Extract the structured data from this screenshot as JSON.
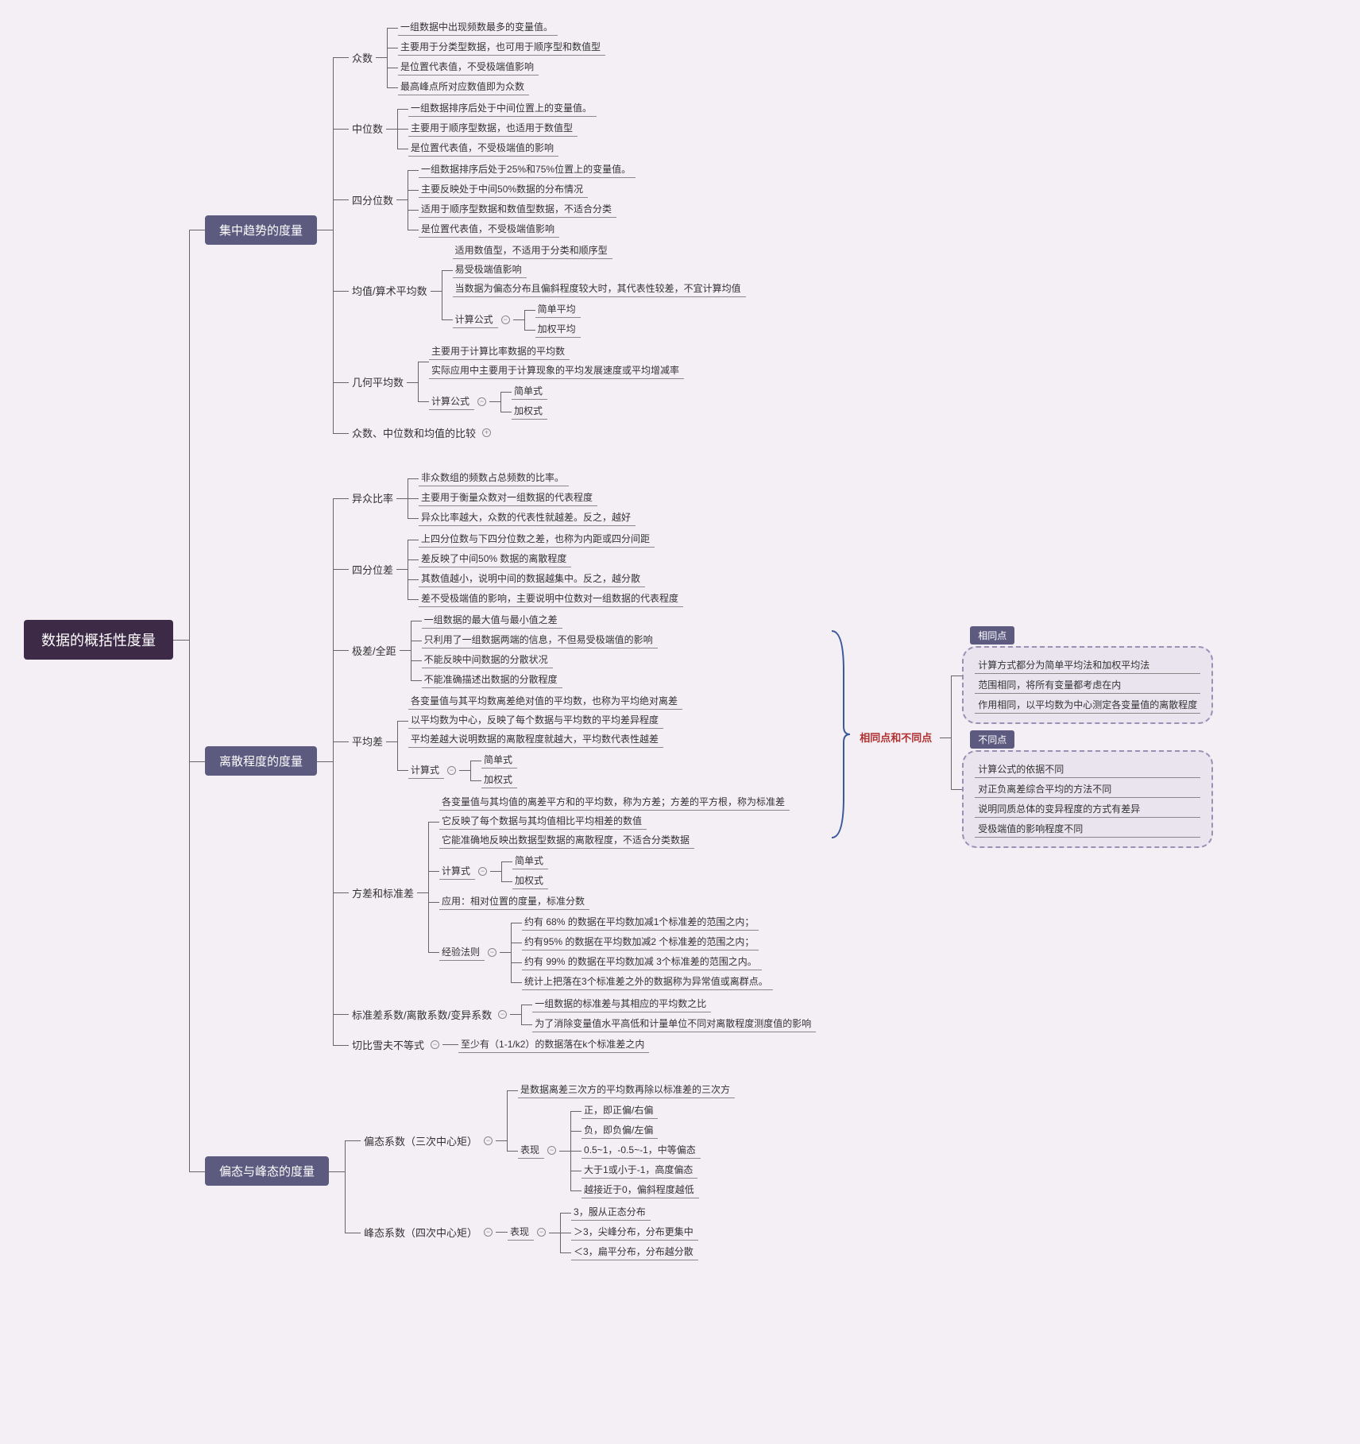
{
  "root": "数据的概括性度量",
  "level1": {
    "central": "集中趋势的度量",
    "dispersion": "离散程度的度量",
    "shape": "偏态与峰态的度量"
  },
  "central": {
    "mode": {
      "label": "众数",
      "items": [
        "一组数据中出现频数最多的变量值。",
        "主要用于分类型数据，也可用于顺序型和数值型",
        "是位置代表值，不受极端值影响",
        "最高峰点所对应数值即为众数"
      ]
    },
    "median": {
      "label": "中位数",
      "items": [
        "一组数据排序后处于中间位置上的变量值。",
        "主要用于顺序型数据，也适用于数值型",
        "是位置代表值，不受极端值的影响"
      ]
    },
    "quartile": {
      "label": "四分位数",
      "items": [
        "一组数据排序后处于25%和75%位置上的变量值。",
        "主要反映处于中间50%数据的分布情况",
        "适用于顺序型数据和数值型数据，不适合分类",
        "是位置代表值，不受极端值影响"
      ]
    },
    "mean": {
      "label": "均值/算术平均数",
      "items": [
        "适用数值型，不适用于分类和顺序型",
        "易受极端值影响",
        "当数据为偏态分布且偏斜程度较大时，其代表性较差，不宜计算均值"
      ],
      "formula_label": "计算公式",
      "formula_items": [
        "简单平均",
        "加权平均"
      ]
    },
    "geomean": {
      "label": "几何平均数",
      "items": [
        "主要用于计算比率数据的平均数",
        "实际应用中主要用于计算现象的平均发展速度或平均增减率"
      ],
      "formula_label": "计算公式",
      "formula_items": [
        "简单式",
        "加权式"
      ]
    },
    "compare": "众数、中位数和均值的比较"
  },
  "dispersion": {
    "vr": {
      "label": "异众比率",
      "items": [
        "非众数组的频数占总频数的比率。",
        "主要用于衡量众数对一组数据的代表程度",
        "异众比率越大，众数的代表性就越差。反之，越好"
      ]
    },
    "iqr": {
      "label": "四分位差",
      "items": [
        "上四分位数与下四分位数之差，也称为内距或四分间距",
        "差反映了中间50% 数据的离散程度",
        "其数值越小，说明中间的数据越集中。反之，越分散",
        "差不受极端值的影响，主要说明中位数对一组数据的代表程度"
      ]
    },
    "range": {
      "label": "极差/全距",
      "items": [
        "一组数据的最大值与最小值之差",
        "只利用了一组数据两端的信息，不但易受极端值的影响",
        "不能反映中间数据的分散状况",
        "不能准确描述出数据的分散程度"
      ]
    },
    "mad": {
      "label": "平均差",
      "items": [
        "各变量值与其平均数离差绝对值的平均数，也称为平均绝对离差",
        "以平均数为中心，反映了每个数据与平均数的平均差异程度",
        "平均差越大说明数据的离散程度就越大，平均数代表性越差"
      ],
      "formula_label": "计算式",
      "formula_items": [
        "简单式",
        "加权式"
      ]
    },
    "var": {
      "label": "方差和标准差",
      "items": [
        "各变量值与其均值的离差平方和的平均数，称为方差；方差的平方根，称为标准差",
        "它反映了每个数据与其均值相比平均相差的数值",
        "它能准确地反映出数据型数据的离散程度，不适合分类数据"
      ],
      "formula_label": "计算式",
      "formula_items": [
        "简单式",
        "加权式"
      ],
      "app_label": "应用：相对位置的度量，标准分数",
      "rule_label": "经验法则",
      "rule_items": [
        "约有 68% 的数据在平均数加减1个标准差的范围之内；",
        "约有95% 的数据在平均数加减2 个标准差的范围之内；",
        "约有 99% 的数据在平均数加减 3个标准差的范围之内。",
        "统计上把落在3个标准差之外的数据称为异常值或离群点。"
      ]
    },
    "cv": {
      "label": "标准差系数/离散系数/变异系数",
      "items": [
        "一组数据的标准差与其相应的平均数之比",
        "为了消除变量值水平高低和计量单位不同对离散程度测度值的影响"
      ]
    },
    "cheby": {
      "label": "切比雪夫不等式",
      "item": "至少有（1-1/k2）的数据落在k个标准差之内"
    }
  },
  "shape": {
    "skew": {
      "label": "偏态系数（三次中心矩）",
      "item0": "是数据离差三次方的平均数再除以标准差的三次方",
      "perf_label": "表现",
      "perf_items": [
        "正，即正偏/右偏",
        "负，即负偏/左偏",
        "0.5~1，-0.5~-1，中等偏态",
        "大于1或小于-1，高度偏态",
        "越接近于0，偏斜程度越低"
      ]
    },
    "kurt": {
      "label": "峰态系数（四次中心矩）",
      "perf_label": "表现",
      "perf_items": [
        "3，服从正态分布",
        "＞3，尖峰分布，分布更集中",
        "＜3，扁平分布，分布越分散"
      ]
    }
  },
  "summary": {
    "title": "相同点和不同点",
    "same_title": "相同点",
    "same_items": [
      "计算方式都分为简单平均法和加权平均法",
      "范围相同，将所有变量都考虑在内",
      "作用相同，以平均数为中心测定各变量值的离散程度"
    ],
    "diff_title": "不同点",
    "diff_items": [
      "计算公式的依据不同",
      "对正负离差综合平均的方法不同",
      "说明同质总体的变异程度的方式有差异",
      "受极端值的影响程度不同"
    ]
  },
  "colors": {
    "bg": "#f4eff5",
    "root": "#3d2a47",
    "level1": "#5d5a80",
    "line": "#666666",
    "summary_label": "#b03030",
    "cloud_border": "#9a8fb5"
  }
}
